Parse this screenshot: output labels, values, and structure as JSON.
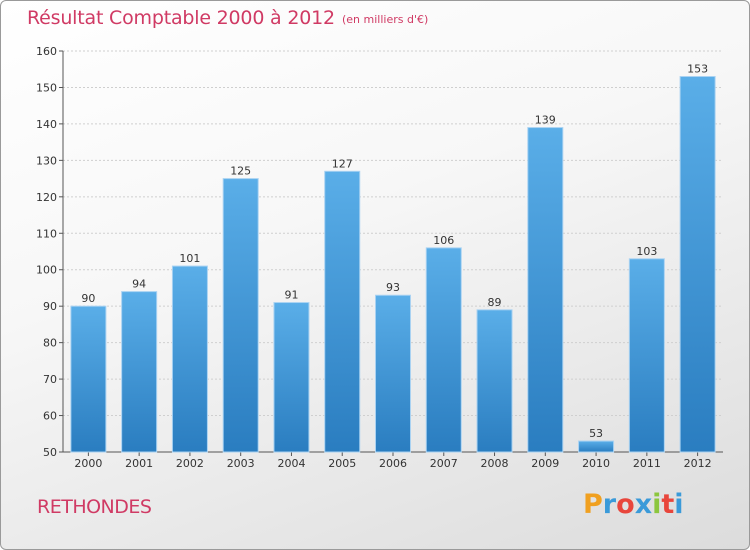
{
  "title": "Résultat Comptable 2000 à 2012",
  "subtitle": "(en milliers d'€)",
  "commune": "RETHONDES",
  "logo": {
    "letters": [
      "P",
      "r",
      "o",
      "x",
      "i",
      "t",
      "i"
    ],
    "colors": [
      "#f0a020",
      "#3a9ad9",
      "#e8463c",
      "#3a9ad9",
      "#8cc63e",
      "#e8463c",
      "#3a9ad9"
    ],
    "text": "Proxiti"
  },
  "colors": {
    "bar_light": "#5aaee8",
    "bar_dark": "#2a7dc0",
    "title": "#d03a64",
    "grid": "#cfcfcf"
  },
  "chart_data": {
    "type": "bar",
    "title": "Résultat Comptable 2000 à 2012",
    "ylabel": "(en milliers d'€)",
    "xlabel": "",
    "categories": [
      "2000",
      "2001",
      "2002",
      "2003",
      "2004",
      "2005",
      "2006",
      "2007",
      "2008",
      "2009",
      "2010",
      "2011",
      "2012"
    ],
    "values": [
      90,
      94,
      101,
      125,
      91,
      127,
      93,
      106,
      89,
      139,
      53,
      103,
      153
    ],
    "ylim": [
      50,
      160
    ],
    "yticks": [
      50,
      60,
      70,
      80,
      90,
      100,
      110,
      120,
      130,
      140,
      150,
      160
    ],
    "grid": true
  }
}
